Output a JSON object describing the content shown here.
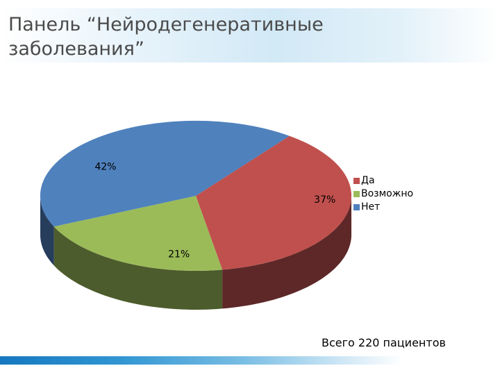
{
  "title": "Панель “Нейродегенеративные заболевания”",
  "footer_note": "Всего 220 пациентов",
  "chart_data": {
    "type": "pie",
    "title": "",
    "categories": [
      "Да",
      "Возможно",
      "Нет"
    ],
    "values": [
      37,
      21,
      42
    ],
    "labels": [
      "37%",
      "21%",
      "42%"
    ],
    "colors": [
      "#c0504d",
      "#9bbb59",
      "#4f81bd"
    ],
    "side_colors": [
      "#5e2828",
      "#4d5c2c",
      "#263d5c"
    ],
    "three_d": true,
    "legend": "right"
  }
}
